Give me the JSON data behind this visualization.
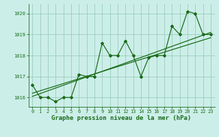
{
  "x": [
    0,
    1,
    2,
    3,
    4,
    5,
    6,
    7,
    8,
    9,
    10,
    11,
    12,
    13,
    14,
    15,
    16,
    17,
    18,
    19,
    20,
    21,
    22,
    23
  ],
  "pressure": [
    1016.6,
    1016.0,
    1016.0,
    1015.8,
    1016.0,
    1016.0,
    1017.1,
    1017.0,
    1017.0,
    1018.6,
    1018.0,
    1018.0,
    1018.7,
    1018.0,
    1017.0,
    1017.9,
    1018.0,
    1018.0,
    1019.4,
    1019.0,
    1020.1,
    1020.0,
    1019.0,
    1019.0
  ],
  "line1_x": [
    0,
    23
  ],
  "line1_y": [
    1016.05,
    1019.1
  ],
  "line2_x": [
    0,
    23
  ],
  "line2_y": [
    1016.2,
    1018.85
  ],
  "bg_color": "#cceee8",
  "grid_color": "#99ccbb",
  "line_color": "#1a6b1a",
  "ylabel_ticks": [
    1016,
    1017,
    1018,
    1019,
    1020
  ],
  "xlabel_ticks": [
    0,
    1,
    2,
    3,
    4,
    5,
    6,
    7,
    8,
    9,
    10,
    11,
    12,
    13,
    14,
    15,
    16,
    17,
    18,
    19,
    20,
    21,
    22,
    23
  ],
  "ylim": [
    1015.55,
    1020.45
  ],
  "xlim": [
    -0.5,
    23.5
  ],
  "xlabel": "Graphe pression niveau de la mer (hPa)",
  "title_color": "#1a6b1a",
  "tick_fontsize": 5.0,
  "label_fontsize": 6.5
}
